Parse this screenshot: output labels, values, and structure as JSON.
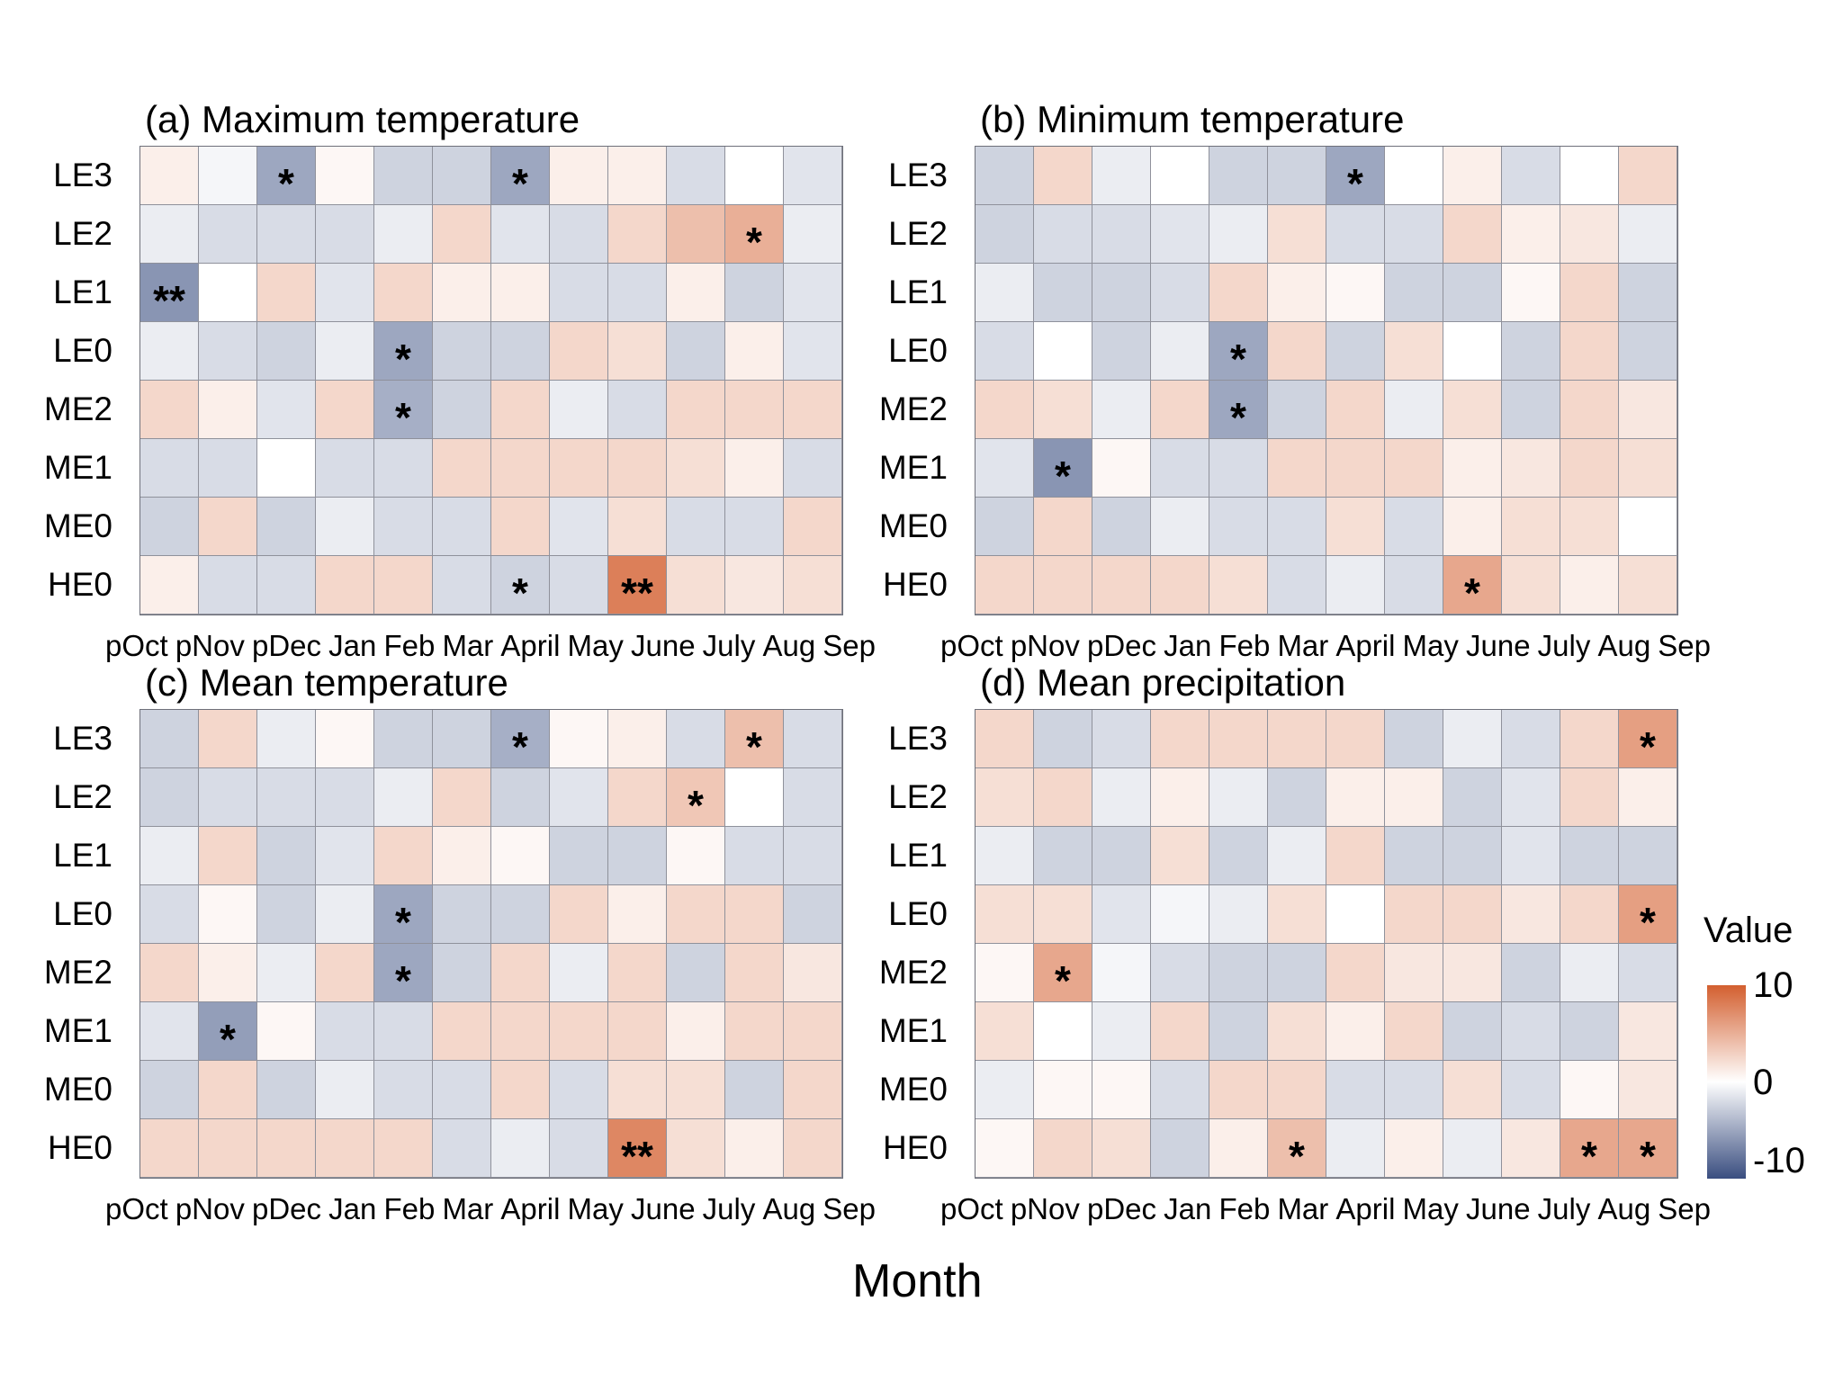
{
  "xlabel": "Month",
  "months": [
    "pOct",
    "pNov",
    "pDec",
    "Jan",
    "Feb",
    "Mar",
    "April",
    "May",
    "June",
    "July",
    "Aug",
    "Sep"
  ],
  "groups": [
    "LE3",
    "LE2",
    "LE1",
    "LE0",
    "ME2",
    "ME1",
    "ME0",
    "HE0"
  ],
  "legend": {
    "title": "Value",
    "ticks": [
      "10",
      "0",
      "-10"
    ],
    "min": -10,
    "max": 10,
    "colors": {
      "positive_max": "#d35f2f",
      "zero": "#ffffff",
      "negative_min": "#3a4e80"
    }
  },
  "chart_data": [
    {
      "type": "heatmap",
      "title": "(a) Maximum temperature",
      "columns": [
        "pOct",
        "pNov",
        "pDec",
        "Jan",
        "Feb",
        "Mar",
        "April",
        "May",
        "June",
        "July",
        "Aug",
        "Sep"
      ],
      "rows": [
        "LE3",
        "LE2",
        "LE1",
        "LE0",
        "ME2",
        "ME1",
        "ME0",
        "HE0"
      ],
      "value_range": [
        -10,
        10
      ],
      "values": [
        [
          1,
          -0.5,
          -5,
          0.5,
          -2.5,
          -2.5,
          -5,
          1,
          1,
          -2,
          0,
          -1.5
        ],
        [
          -1,
          -2,
          -2,
          -2,
          -1,
          2.5,
          -1.5,
          -2,
          2.5,
          4,
          5,
          -1
        ],
        [
          -6,
          0,
          2.5,
          -1.5,
          2.5,
          1,
          1,
          -2,
          -2,
          1,
          -2.5,
          -1.5
        ],
        [
          -1,
          -2,
          -2.5,
          -1,
          -5,
          -2.5,
          -2.5,
          2.5,
          2,
          -2.5,
          1,
          -1.5
        ],
        [
          2.5,
          1,
          -1.5,
          2.5,
          -4.5,
          -2.5,
          2.5,
          -1,
          -2,
          2.5,
          2.5,
          2.5
        ],
        [
          -2,
          -2,
          0,
          -2,
          -2,
          2.5,
          2.5,
          2.5,
          2.5,
          2,
          1,
          -2
        ],
        [
          -2.5,
          2.5,
          -2.5,
          -1,
          -2,
          -2,
          2.5,
          -1.5,
          2,
          -2,
          -2,
          2.5
        ],
        [
          1,
          -2,
          -2,
          2.5,
          2.5,
          -2,
          -2.5,
          -2,
          8,
          2,
          1.5,
          2
        ]
      ],
      "significance_marks": [
        {
          "row": "LE3",
          "col": "pDec",
          "mark": "*"
        },
        {
          "row": "LE3",
          "col": "April",
          "mark": "*"
        },
        {
          "row": "LE2",
          "col": "Aug",
          "mark": "*"
        },
        {
          "row": "LE1",
          "col": "pOct",
          "mark": "**"
        },
        {
          "row": "LE0",
          "col": "Feb",
          "mark": "*"
        },
        {
          "row": "ME2",
          "col": "Feb",
          "mark": "*"
        },
        {
          "row": "HE0",
          "col": "April",
          "mark": "*"
        },
        {
          "row": "HE0",
          "col": "June",
          "mark": "**"
        }
      ]
    },
    {
      "type": "heatmap",
      "title": "(b) Minimum temperature",
      "columns": [
        "pOct",
        "pNov",
        "pDec",
        "Jan",
        "Feb",
        "Mar",
        "April",
        "May",
        "June",
        "July",
        "Aug",
        "Sep"
      ],
      "rows": [
        "LE3",
        "LE2",
        "LE1",
        "LE0",
        "ME2",
        "ME1",
        "ME0",
        "HE0"
      ],
      "value_range": [
        -10,
        10
      ],
      "values": [
        [
          -2.5,
          2.5,
          -1,
          0,
          -2.5,
          -2.5,
          -5,
          0,
          1,
          -2,
          0,
          2.5
        ],
        [
          -2.5,
          -2,
          -2,
          -1.5,
          -1,
          2,
          -2,
          -2,
          2.5,
          1,
          1.5,
          -1
        ],
        [
          -1,
          -2.5,
          -2.5,
          -2,
          2.5,
          1,
          0.5,
          -2.5,
          -2.5,
          0.5,
          2.5,
          -2.5
        ],
        [
          -2,
          0,
          -2.5,
          -1,
          -5,
          2.5,
          -2.5,
          2,
          0,
          -2.5,
          2.5,
          -2.5
        ],
        [
          2.5,
          2,
          -1,
          2.5,
          -5,
          -2.5,
          2.5,
          -1,
          2,
          -2.5,
          2.5,
          1.5
        ],
        [
          -1.5,
          -6,
          0.5,
          -2,
          -2,
          2.5,
          2.5,
          2.5,
          1,
          1.5,
          2.5,
          2
        ],
        [
          -2.5,
          2.5,
          -2.5,
          -1,
          -2,
          -2,
          2,
          -2,
          1,
          2,
          2,
          0
        ],
        [
          2.5,
          2.5,
          2.5,
          2.5,
          2,
          -2,
          -1,
          -2,
          5.5,
          2,
          1,
          2
        ]
      ],
      "significance_marks": [
        {
          "row": "LE3",
          "col": "April",
          "mark": "*"
        },
        {
          "row": "LE0",
          "col": "Feb",
          "mark": "*"
        },
        {
          "row": "ME2",
          "col": "Feb",
          "mark": "*"
        },
        {
          "row": "ME1",
          "col": "pNov",
          "mark": "*"
        },
        {
          "row": "HE0",
          "col": "June",
          "mark": "*"
        }
      ]
    },
    {
      "type": "heatmap",
      "title": "(c) Mean temperature",
      "columns": [
        "pOct",
        "pNov",
        "pDec",
        "Jan",
        "Feb",
        "Mar",
        "April",
        "May",
        "June",
        "July",
        "Aug",
        "Sep"
      ],
      "rows": [
        "LE3",
        "LE2",
        "LE1",
        "LE0",
        "ME2",
        "ME1",
        "ME0",
        "HE0"
      ],
      "value_range": [
        -10,
        10
      ],
      "values": [
        [
          -2.5,
          2.5,
          -1,
          0.5,
          -2.5,
          -2.5,
          -4.5,
          0.5,
          1,
          -2,
          4,
          -2
        ],
        [
          -2.5,
          -2,
          -2,
          -2,
          -1,
          2.5,
          -2.5,
          -1.5,
          2.5,
          3.5,
          0,
          -2
        ],
        [
          -1,
          2.5,
          -2.5,
          -1.5,
          2.5,
          1,
          0.5,
          -2.5,
          -2.5,
          0.5,
          -2,
          -2
        ],
        [
          -2,
          0.5,
          -2.5,
          -1,
          -5,
          -2.5,
          -2.5,
          2.5,
          1,
          2.5,
          2.5,
          -2.5
        ],
        [
          2.5,
          1,
          -1,
          2.5,
          -5,
          -2.5,
          2.5,
          -1,
          2.5,
          -2.5,
          2.5,
          1.5
        ],
        [
          -1.5,
          -5.5,
          0.5,
          -2,
          -2,
          2.5,
          2.5,
          2.5,
          2.5,
          1,
          2.5,
          2.5
        ],
        [
          -2.5,
          2.5,
          -2.5,
          -1,
          -2,
          -2,
          2.5,
          -2,
          2,
          2,
          -2.5,
          2.5
        ],
        [
          2.5,
          2.5,
          2.5,
          2.5,
          2.5,
          -2,
          -1,
          -2,
          7.5,
          2,
          1,
          2.5
        ]
      ],
      "significance_marks": [
        {
          "row": "LE3",
          "col": "April",
          "mark": "*"
        },
        {
          "row": "LE3",
          "col": "Aug",
          "mark": "*"
        },
        {
          "row": "LE2",
          "col": "July",
          "mark": "*"
        },
        {
          "row": "LE0",
          "col": "Feb",
          "mark": "*"
        },
        {
          "row": "ME2",
          "col": "Feb",
          "mark": "*"
        },
        {
          "row": "ME1",
          "col": "pNov",
          "mark": "*"
        },
        {
          "row": "HE0",
          "col": "June",
          "mark": "**"
        }
      ]
    },
    {
      "type": "heatmap",
      "title": "(d) Mean precipitation",
      "columns": [
        "pOct",
        "pNov",
        "pDec",
        "Jan",
        "Feb",
        "Mar",
        "April",
        "May",
        "June",
        "July",
        "Aug",
        "Sep"
      ],
      "rows": [
        "LE3",
        "LE2",
        "LE1",
        "LE0",
        "ME2",
        "ME1",
        "ME0",
        "HE0"
      ],
      "value_range": [
        -10,
        10
      ],
      "values": [
        [
          2.5,
          -2.5,
          -2,
          2.5,
          2.5,
          2.5,
          2.5,
          -2.5,
          -1,
          -2,
          2.5,
          6
        ],
        [
          2,
          2.5,
          -1,
          1,
          -1,
          -2.5,
          1,
          1,
          -2.5,
          -1.5,
          2.5,
          1
        ],
        [
          -1,
          -2.5,
          -2.5,
          2,
          -2.5,
          -1,
          2.5,
          -2.5,
          -2.5,
          -1.5,
          -2.5,
          -2.5
        ],
        [
          2,
          2,
          -1.5,
          -0.5,
          -1,
          2,
          0,
          2.5,
          2.5,
          1.5,
          2.5,
          6
        ],
        [
          0.5,
          5.5,
          -0.5,
          -2,
          -2.5,
          -2.5,
          2.5,
          1.5,
          1.5,
          -2.5,
          -1,
          -2
        ],
        [
          2,
          0,
          -1,
          2.5,
          -2.5,
          2,
          1,
          2.5,
          -2.5,
          -2,
          -2.5,
          1.5
        ],
        [
          -1,
          0.5,
          0.5,
          -2,
          2.5,
          2.5,
          -2,
          -2,
          2,
          -2,
          0.5,
          1.5
        ],
        [
          0.5,
          2.5,
          2,
          -2.5,
          1,
          4,
          -1,
          1,
          -1,
          1.5,
          5.5,
          5.5
        ]
      ],
      "significance_marks": [
        {
          "row": "LE3",
          "col": "Sep",
          "mark": "*"
        },
        {
          "row": "LE0",
          "col": "Sep",
          "mark": "*"
        },
        {
          "row": "ME2",
          "col": "pNov",
          "mark": "*"
        },
        {
          "row": "HE0",
          "col": "Mar",
          "mark": "*"
        },
        {
          "row": "HE0",
          "col": "Aug",
          "mark": "*"
        },
        {
          "row": "HE0",
          "col": "Sep",
          "mark": "*"
        }
      ]
    }
  ]
}
